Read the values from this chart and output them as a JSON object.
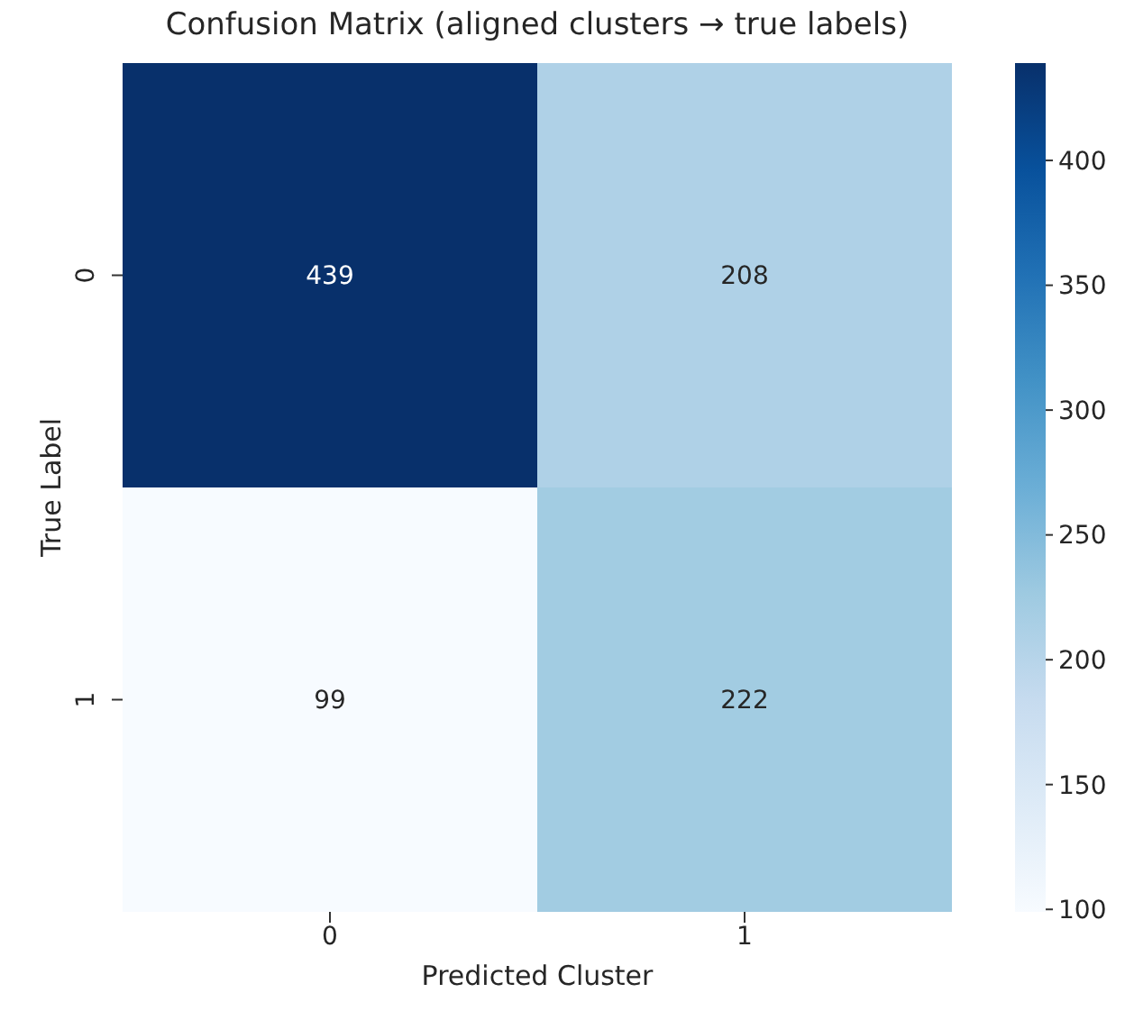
{
  "chart_data": {
    "type": "heatmap",
    "title": "Confusion Matrix (aligned clusters → true labels)",
    "xlabel": "Predicted Cluster",
    "ylabel": "True Label",
    "categories": [
      "0",
      "1"
    ],
    "y_categories": [
      "0",
      "1"
    ],
    "cells": [
      [
        439,
        208
      ],
      [
        99,
        222
      ]
    ],
    "clim": [
      99,
      439
    ],
    "cticks": [
      100,
      150,
      200,
      250,
      300,
      350,
      400
    ],
    "data_labels": true
  }
}
